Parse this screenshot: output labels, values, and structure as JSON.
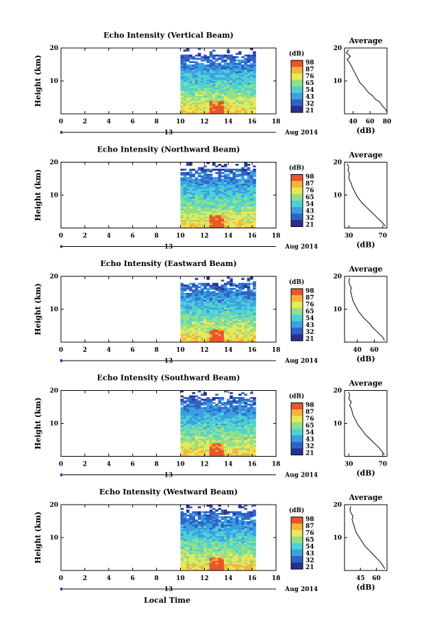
{
  "figure": {
    "xlabel": "Local Time",
    "date_label": "Aug 2014",
    "day_label": "13"
  },
  "colors": {
    "colormap": [
      "#2a2f8f",
      "#2e63c8",
      "#3aa0e0",
      "#4fd0d6",
      "#8fe08a",
      "#e8e85a",
      "#f5b43a",
      "#e8562a"
    ]
  },
  "chart_data": [
    {
      "type": "heatmap",
      "title": "Echo Intensity (Vertical Beam)",
      "xlabel": "Local Time",
      "ylabel": "Height (km)",
      "xlim": [
        0,
        18
      ],
      "ylim": [
        0,
        20
      ],
      "xticks": [
        0,
        2,
        4,
        6,
        8,
        10,
        12,
        14,
        16,
        18
      ],
      "yticks": [
        10,
        20
      ],
      "data_time_range": [
        10,
        16.3
      ],
      "colorbar": {
        "label": "(dB)",
        "ticks": [
          98,
          87,
          76,
          65,
          54,
          43,
          32,
          21
        ]
      },
      "profile": {
        "title": "Average",
        "xlabel": "(dB)",
        "ylabel_ticks": [
          10,
          20
        ],
        "xlim": [
          30,
          80
        ],
        "xticks": [
          40,
          60,
          80
        ],
        "points": [
          [
            80,
            0.5
          ],
          [
            78,
            1.5
          ],
          [
            74,
            2.5
          ],
          [
            72,
            3.5
          ],
          [
            66,
            4.5
          ],
          [
            63,
            5.5
          ],
          [
            58,
            6.5
          ],
          [
            55,
            7.5
          ],
          [
            52,
            8.5
          ],
          [
            48,
            9.5
          ],
          [
            46,
            10.5
          ],
          [
            44,
            11.5
          ],
          [
            42,
            12.5
          ],
          [
            40,
            13.5
          ],
          [
            38,
            14.5
          ],
          [
            36,
            15.5
          ],
          [
            33,
            16.5
          ],
          [
            37,
            17.5
          ],
          [
            32,
            18.5
          ],
          [
            35,
            19.5
          ]
        ]
      }
    },
    {
      "type": "heatmap",
      "title": "Echo Intensity (Northward Beam)",
      "xlabel": "Local Time",
      "ylabel": "Height (km)",
      "xlim": [
        0,
        18
      ],
      "ylim": [
        0,
        20
      ],
      "xticks": [
        0,
        2,
        4,
        6,
        8,
        10,
        12,
        14,
        16,
        18
      ],
      "yticks": [
        10,
        20
      ],
      "data_time_range": [
        10,
        16.3
      ],
      "colorbar": {
        "label": "(dB)",
        "ticks": [
          98,
          87,
          76,
          65,
          54,
          43,
          32,
          21
        ]
      },
      "profile": {
        "title": "Average",
        "xlabel": "(dB)",
        "ylabel_ticks": [
          10,
          20
        ],
        "xlim": [
          25,
          75
        ],
        "xticks": [
          30,
          70
        ],
        "points": [
          [
            73,
            0.5
          ],
          [
            70,
            1.5
          ],
          [
            66,
            2.5
          ],
          [
            62,
            3.5
          ],
          [
            58,
            4.5
          ],
          [
            54,
            5.5
          ],
          [
            50,
            6.5
          ],
          [
            46,
            7.5
          ],
          [
            43,
            8.5
          ],
          [
            40,
            9.5
          ],
          [
            38,
            10.5
          ],
          [
            36,
            11.5
          ],
          [
            34,
            12.5
          ],
          [
            33,
            13.5
          ],
          [
            31,
            14.5
          ],
          [
            30,
            15.5
          ],
          [
            31,
            16.5
          ],
          [
            29,
            17.5
          ],
          [
            30,
            18.5
          ],
          [
            28,
            19.5
          ]
        ]
      }
    },
    {
      "type": "heatmap",
      "title": "Echo Intensity (Eastward Beam)",
      "xlabel": "Local Time",
      "ylabel": "Height (km)",
      "xlim": [
        0,
        18
      ],
      "ylim": [
        0,
        20
      ],
      "xticks": [
        0,
        2,
        4,
        6,
        8,
        10,
        12,
        14,
        16,
        18
      ],
      "yticks": [
        10,
        20
      ],
      "data_time_range": [
        10,
        16.3
      ],
      "colorbar": {
        "label": "(dB)",
        "ticks": [
          98,
          87,
          76,
          65,
          54,
          43,
          32,
          21
        ]
      },
      "profile": {
        "title": "Average",
        "xlabel": "(dB)",
        "ylabel_ticks": [
          10,
          20
        ],
        "xlim": [
          25,
          75
        ],
        "xticks": [
          40,
          60
        ],
        "points": [
          [
            72,
            0.5
          ],
          [
            70,
            1.5
          ],
          [
            66,
            2.5
          ],
          [
            62,
            3.5
          ],
          [
            58,
            4.5
          ],
          [
            55,
            5.5
          ],
          [
            51,
            6.5
          ],
          [
            47,
            7.5
          ],
          [
            44,
            8.5
          ],
          [
            41,
            9.5
          ],
          [
            39,
            10.5
          ],
          [
            37,
            11.5
          ],
          [
            35,
            12.5
          ],
          [
            34,
            13.5
          ],
          [
            33,
            14.5
          ],
          [
            32,
            15.5
          ],
          [
            33,
            16.5
          ],
          [
            31,
            17.5
          ],
          [
            30,
            18.5
          ],
          [
            31,
            19.5
          ]
        ]
      }
    },
    {
      "type": "heatmap",
      "title": "Echo Intensity (Southward Beam)",
      "xlabel": "Local Time",
      "ylabel": "Height (km)",
      "xlim": [
        0,
        18
      ],
      "ylim": [
        0,
        20
      ],
      "xticks": [
        0,
        2,
        4,
        6,
        8,
        10,
        12,
        14,
        16,
        18
      ],
      "yticks": [
        10,
        20
      ],
      "data_time_range": [
        10,
        16.3
      ],
      "colorbar": {
        "label": "(dB)",
        "ticks": [
          98,
          87,
          76,
          65,
          54,
          43,
          32,
          21
        ]
      },
      "profile": {
        "title": "Average",
        "xlabel": "(dB)",
        "ylabel_ticks": [
          10,
          20
        ],
        "xlim": [
          25,
          75
        ],
        "xticks": [
          30,
          70
        ],
        "points": [
          [
            72,
            0.5
          ],
          [
            69,
            1.5
          ],
          [
            66,
            2.5
          ],
          [
            62,
            3.5
          ],
          [
            58,
            4.5
          ],
          [
            54,
            5.5
          ],
          [
            50,
            6.5
          ],
          [
            47,
            7.5
          ],
          [
            44,
            8.5
          ],
          [
            41,
            9.5
          ],
          [
            39,
            10.5
          ],
          [
            37,
            11.5
          ],
          [
            35,
            12.5
          ],
          [
            34,
            13.5
          ],
          [
            33,
            14.5
          ],
          [
            31,
            15.5
          ],
          [
            33,
            16.5
          ],
          [
            30,
            17.5
          ],
          [
            31,
            18.5
          ],
          [
            30,
            19.5
          ]
        ]
      }
    },
    {
      "type": "heatmap",
      "title": "Echo Intensity (Westward Beam)",
      "xlabel": "Local Time",
      "ylabel": "Height (km)",
      "xlim": [
        0,
        18
      ],
      "ylim": [
        0,
        20
      ],
      "xticks": [
        0,
        2,
        4,
        6,
        8,
        10,
        12,
        14,
        16,
        18
      ],
      "yticks": [
        10,
        20
      ],
      "data_time_range": [
        10,
        16.3
      ],
      "colorbar": {
        "label": "(dB)",
        "ticks": [
          98,
          87,
          76,
          65,
          54,
          43,
          32,
          21
        ]
      },
      "profile": {
        "title": "Average",
        "xlabel": "(dB)",
        "ylabel_ticks": [
          10,
          20
        ],
        "xlim": [
          30,
          70
        ],
        "xticks": [
          45,
          60
        ],
        "points": [
          [
            68,
            0.5
          ],
          [
            66,
            1.5
          ],
          [
            64,
            2.5
          ],
          [
            61,
            3.5
          ],
          [
            58,
            4.5
          ],
          [
            55,
            5.5
          ],
          [
            52,
            6.5
          ],
          [
            49,
            7.5
          ],
          [
            47,
            8.5
          ],
          [
            45,
            9.5
          ],
          [
            43,
            10.5
          ],
          [
            41,
            11.5
          ],
          [
            40,
            12.5
          ],
          [
            39,
            13.5
          ],
          [
            38,
            14.5
          ],
          [
            37,
            15.5
          ],
          [
            38,
            16.5
          ],
          [
            36,
            17.5
          ],
          [
            35,
            18.5
          ],
          [
            36,
            19.5
          ]
        ]
      }
    }
  ]
}
